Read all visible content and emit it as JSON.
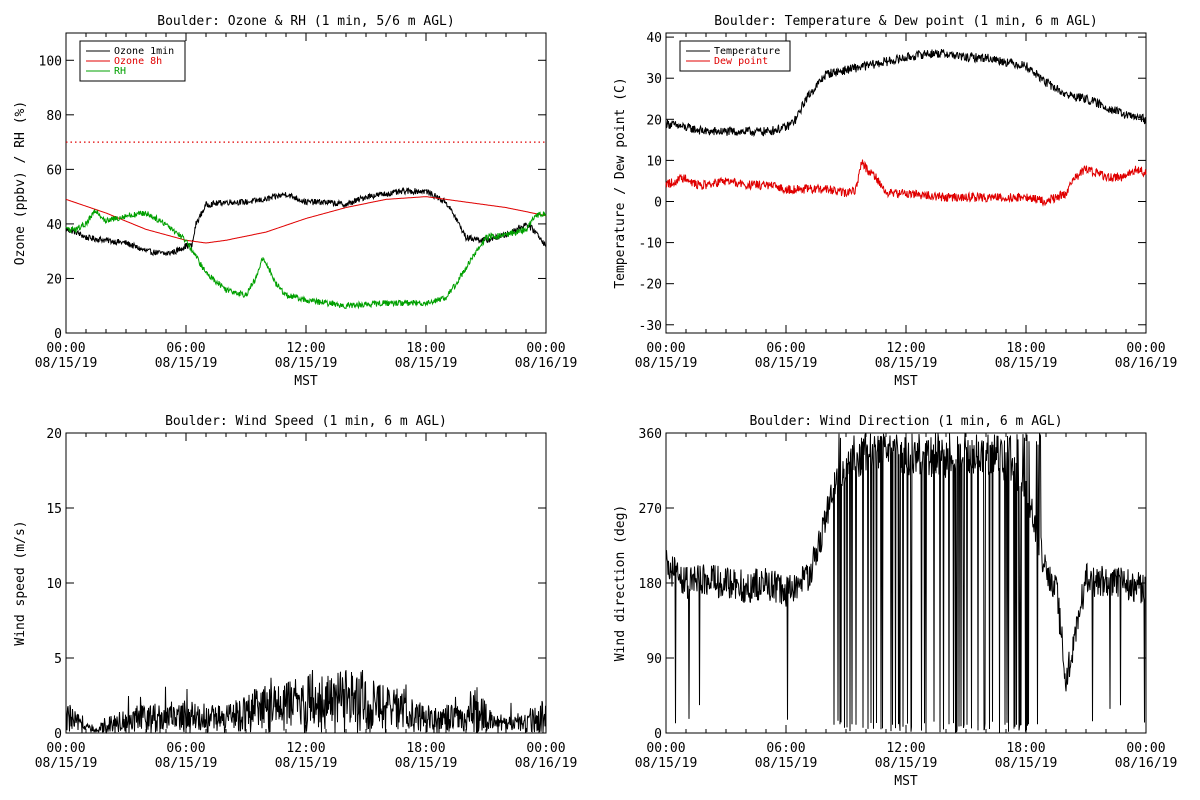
{
  "chart_data": [
    {
      "type": "line",
      "title": "Boulder: Ozone & RH (1 min, 5/6 m AGL)",
      "xlabel": "MST",
      "ylabel": "Ozone (ppbv) / RH (%)",
      "ylim": [
        0,
        110
      ],
      "yticks": [
        0,
        20,
        40,
        60,
        80,
        100
      ],
      "xlim_hours": [
        0,
        24
      ],
      "xticks": [
        {
          "hour": 0,
          "time": "00:00",
          "date": "08/15/19"
        },
        {
          "hour": 6,
          "time": "06:00",
          "date": "08/15/19"
        },
        {
          "hour": 12,
          "time": "12:00",
          "date": "08/15/19"
        },
        {
          "hour": 18,
          "time": "18:00",
          "date": "08/15/19"
        },
        {
          "hour": 24,
          "time": "00:00",
          "date": "08/16/19"
        }
      ],
      "legend_position": "top-left",
      "series": [
        {
          "name": "Ozone 1min",
          "color": "#000000",
          "style": "noisy",
          "x": [
            0,
            0.5,
            1,
            2,
            3,
            4,
            5,
            5.5,
            6,
            6.3,
            6.5,
            7,
            8,
            9,
            10,
            11,
            12,
            13,
            14,
            15,
            16,
            17,
            18,
            18.5,
            19,
            19.5,
            20,
            21,
            22,
            23,
            23.5,
            24
          ],
          "y": [
            38,
            37,
            35,
            34,
            33,
            30,
            29,
            30,
            32,
            32,
            40,
            47,
            48,
            48,
            49,
            51,
            48,
            48,
            47,
            50,
            51,
            52,
            52,
            50,
            48,
            42,
            35,
            34,
            36,
            40,
            37,
            32
          ]
        },
        {
          "name": "Ozone 8h",
          "color": "#e00000",
          "style": "smooth",
          "x": [
            0,
            2,
            4,
            6,
            7,
            8,
            10,
            12,
            14,
            16,
            18,
            20,
            22,
            24
          ],
          "y": [
            49,
            44,
            38,
            34,
            33,
            34,
            37,
            42,
            46,
            49,
            50,
            48,
            46,
            43
          ]
        },
        {
          "name": "RH",
          "color": "#00a000",
          "style": "noisy",
          "x": [
            0,
            0.5,
            1,
            1.5,
            2,
            3,
            4,
            5,
            6,
            6.5,
            7,
            7.5,
            8,
            9,
            9.5,
            9.8,
            10,
            10.5,
            11,
            12,
            14,
            16,
            18,
            19,
            19.5,
            20,
            21,
            22,
            23,
            23.5,
            24
          ],
          "y": [
            38,
            38,
            40,
            45,
            41,
            43,
            44,
            40,
            34,
            28,
            22,
            19,
            16,
            14,
            20,
            27,
            26,
            18,
            14,
            12,
            10,
            11,
            11,
            13,
            18,
            24,
            35,
            36,
            38,
            43,
            44
          ]
        },
        {
          "name": "",
          "color": "#e00000",
          "style": "dotted",
          "x": [
            0,
            24
          ],
          "y": [
            70,
            70
          ]
        }
      ]
    },
    {
      "type": "line",
      "title": "Boulder: Temperature & Dew point (1 min, 6 m AGL)",
      "xlabel": "MST",
      "ylabel": "Temperature / Dew point (C)",
      "ylim": [
        -32,
        41
      ],
      "yticks": [
        -30,
        -20,
        -10,
        0,
        10,
        20,
        30,
        40
      ],
      "xlim_hours": [
        0,
        24
      ],
      "xticks": [
        {
          "hour": 0,
          "time": "00:00",
          "date": "08/15/19"
        },
        {
          "hour": 6,
          "time": "06:00",
          "date": "08/15/19"
        },
        {
          "hour": 12,
          "time": "12:00",
          "date": "08/15/19"
        },
        {
          "hour": 18,
          "time": "18:00",
          "date": "08/15/19"
        },
        {
          "hour": 24,
          "time": "00:00",
          "date": "08/16/19"
        }
      ],
      "legend_position": "top-left",
      "series": [
        {
          "name": "Temperature",
          "color": "#000000",
          "style": "noisy",
          "x": [
            0,
            1,
            2,
            3,
            4,
            5,
            6,
            6.5,
            7,
            7.5,
            8,
            9,
            10,
            11,
            12,
            13,
            14,
            15,
            16,
            17,
            18,
            19,
            20,
            21,
            22,
            23,
            24
          ],
          "y": [
            19,
            18,
            17,
            17,
            17,
            17,
            18,
            20,
            25,
            28,
            31,
            32,
            33,
            34,
            35,
            36,
            36,
            35,
            35,
            34,
            33,
            29,
            26,
            25,
            23,
            21,
            20
          ]
        },
        {
          "name": "Dew point",
          "color": "#e00000",
          "style": "noisy",
          "x": [
            0,
            0.5,
            1,
            1.5,
            2,
            3,
            4,
            5,
            6,
            7,
            8,
            9,
            9.5,
            9.8,
            10,
            10.5,
            11,
            12,
            14,
            16,
            18,
            19,
            19.5,
            20,
            20.5,
            21,
            22,
            23,
            23.5,
            24
          ],
          "y": [
            4,
            5,
            6,
            4,
            4,
            5,
            4,
            4,
            3,
            3,
            3,
            2,
            3,
            10,
            8,
            6,
            2,
            2,
            1,
            1,
            1,
            0,
            1,
            2,
            6,
            8,
            6,
            6,
            8,
            7
          ]
        }
      ]
    },
    {
      "type": "line",
      "title": "Boulder: Wind Speed (1 min, 6 m AGL)",
      "xlabel": "",
      "ylabel": "Wind speed (m/s)",
      "ylim": [
        0,
        20
      ],
      "yticks": [
        0,
        5,
        10,
        15,
        20
      ],
      "xlim_hours": [
        0,
        24
      ],
      "xticks": [
        {
          "hour": 0,
          "time": "00:00",
          "date": "08/15/19"
        },
        {
          "hour": 6,
          "time": "06:00",
          "date": "08/15/19"
        },
        {
          "hour": 12,
          "time": "12:00",
          "date": "08/15/19"
        },
        {
          "hour": 18,
          "time": "18:00",
          "date": "08/15/19"
        },
        {
          "hour": 24,
          "time": "00:00",
          "date": "08/16/19"
        }
      ],
      "series": [
        {
          "name": "",
          "color": "#000000",
          "style": "noisy",
          "x": [
            0,
            1,
            1.5,
            2,
            4,
            6,
            8,
            9,
            10,
            11,
            12,
            13,
            14,
            15,
            16,
            18,
            20,
            20.5,
            21,
            22,
            23,
            24
          ],
          "y": [
            1.0,
            0.4,
            0.1,
            0.6,
            1.0,
            1.1,
            0.9,
            1.4,
            1.6,
            1.8,
            2.0,
            2.0,
            2.1,
            1.9,
            1.6,
            1.0,
            0.9,
            1.6,
            1.0,
            0.5,
            0.8,
            1.2
          ]
        }
      ]
    },
    {
      "type": "line",
      "title": "Boulder: Wind Direction (1 min, 6 m AGL)",
      "xlabel": "MST",
      "ylabel": "Wind direction (deg)",
      "ylim": [
        0,
        360
      ],
      "yticks": [
        0,
        90,
        180,
        270,
        360
      ],
      "xlim_hours": [
        0,
        24
      ],
      "xticks": [
        {
          "hour": 0,
          "time": "00:00",
          "date": "08/15/19"
        },
        {
          "hour": 6,
          "time": "06:00",
          "date": "08/15/19"
        },
        {
          "hour": 12,
          "time": "12:00",
          "date": "08/15/19"
        },
        {
          "hour": 18,
          "time": "18:00",
          "date": "08/15/19"
        },
        {
          "hour": 24,
          "time": "00:00",
          "date": "08/16/19"
        }
      ],
      "series": [
        {
          "name": "",
          "color": "#000000",
          "style": "noisy",
          "x": [
            0,
            0.5,
            1,
            2,
            3,
            4,
            5,
            6,
            6.5,
            7,
            7.5,
            8,
            8.5,
            9,
            10,
            11,
            12,
            13,
            14,
            15,
            16,
            17,
            18,
            19,
            19.5,
            20,
            21,
            22,
            23,
            24
          ],
          "y": [
            200,
            190,
            180,
            185,
            180,
            175,
            180,
            170,
            175,
            185,
            210,
            260,
            300,
            320,
            330,
            340,
            330,
            320,
            325,
            330,
            330,
            320,
            300,
            190,
            180,
            60,
            185,
            180,
            180,
            170
          ]
        }
      ]
    }
  ]
}
